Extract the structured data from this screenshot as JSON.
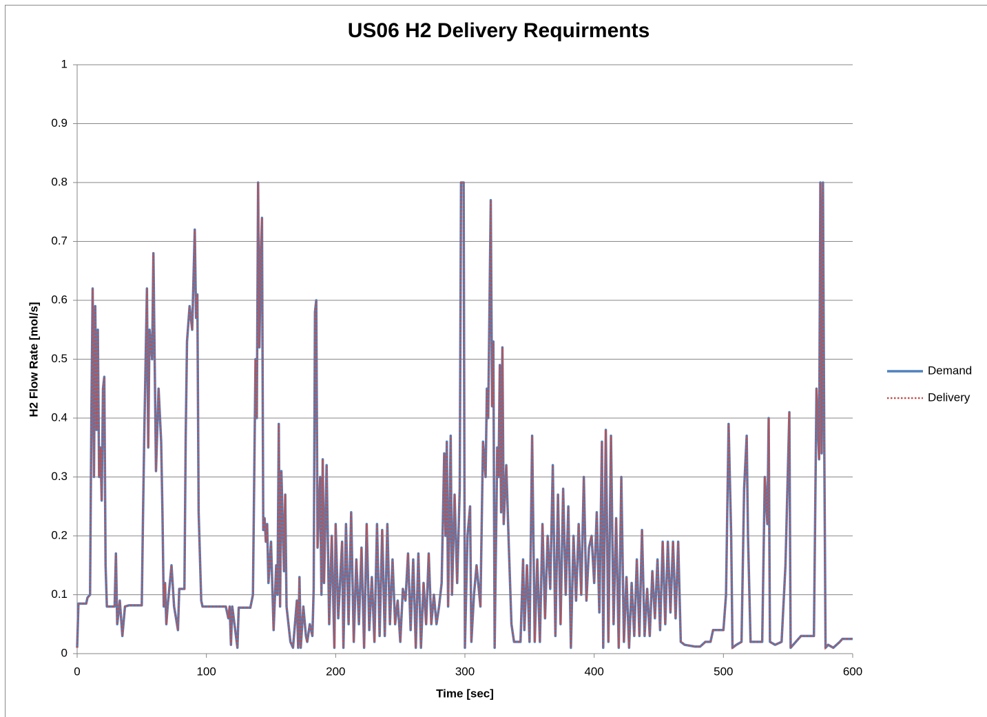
{
  "chart_data": {
    "type": "line",
    "title": "US06 H2 Delivery Requirments",
    "xlabel": "Time [sec]",
    "ylabel": "H2 Flow Rate [mol/s]",
    "xlim": [
      0,
      600
    ],
    "xticks": [
      0,
      100,
      200,
      300,
      400,
      500,
      600
    ],
    "ylim": [
      0,
      1
    ],
    "yticks": [
      0,
      0.1,
      0.2,
      0.3,
      0.4,
      0.5,
      0.6,
      0.7,
      0.8,
      0.9,
      1
    ],
    "grid": true,
    "legend": "right",
    "x": [
      0,
      1,
      7,
      8,
      10,
      11,
      12,
      13,
      14,
      15,
      16,
      17,
      18,
      19,
      20,
      21,
      22,
      23,
      29,
      30,
      31,
      33,
      35,
      37,
      40,
      50,
      51,
      52,
      54,
      55,
      56,
      58,
      59,
      61,
      63,
      65,
      66,
      67,
      68,
      69,
      70,
      73,
      75,
      78,
      79,
      83,
      84,
      85,
      87,
      89,
      91,
      92,
      93,
      94,
      96,
      97,
      115,
      117,
      118,
      119,
      120,
      124,
      125,
      134,
      136,
      138,
      139,
      140,
      141,
      142,
      143,
      144,
      145,
      146,
      147,
      148,
      150,
      152,
      154,
      155,
      156,
      157,
      158,
      160,
      161,
      162,
      165,
      167,
      170,
      171,
      172,
      173,
      175,
      177,
      178,
      180,
      182,
      183,
      184,
      185,
      186,
      188,
      189,
      190,
      191,
      193,
      195,
      197,
      199,
      200,
      202,
      205,
      206,
      208,
      210,
      212,
      214,
      216,
      218,
      220,
      222,
      224,
      226,
      228,
      230,
      232,
      234,
      236,
      238,
      240,
      242,
      244,
      246,
      248,
      250,
      252,
      254,
      256,
      258,
      260,
      262,
      264,
      266,
      268,
      270,
      272,
      274,
      276,
      278,
      280,
      282,
      284,
      285,
      286,
      287,
      289,
      290,
      292,
      294,
      296,
      297,
      299,
      300,
      302,
      304,
      305,
      307,
      309,
      312,
      314,
      316,
      317,
      318,
      320,
      321,
      322,
      323,
      325,
      326,
      327,
      328,
      329,
      330,
      332,
      334,
      336,
      338,
      343,
      345,
      346,
      348,
      350,
      352,
      354,
      356,
      358,
      360,
      362,
      364,
      366,
      368,
      370,
      372,
      374,
      376,
      378,
      380,
      382,
      384,
      386,
      388,
      390,
      392,
      394,
      396,
      398,
      400,
      402,
      404,
      406,
      407,
      409,
      411,
      413,
      415,
      417,
      419,
      421,
      423,
      425,
      427,
      429,
      431,
      433,
      435,
      437,
      439,
      441,
      443,
      445,
      447,
      449,
      451,
      453,
      455,
      457,
      459,
      461,
      463,
      465,
      467,
      470,
      478,
      482,
      486,
      490,
      492,
      500,
      502,
      504,
      506,
      507,
      510,
      514,
      516,
      518,
      519,
      521,
      530,
      532,
      534,
      535,
      536,
      540,
      545,
      548,
      551,
      552,
      556,
      560,
      570,
      572,
      574,
      575,
      576,
      577,
      578,
      579,
      581,
      585,
      590,
      592,
      600
    ],
    "series": [
      {
        "name": "Demand",
        "color": "#4f81bd",
        "style": "solid",
        "values": [
          0.01,
          0.085,
          0.085,
          0.095,
          0.1,
          0.4,
          0.62,
          0.3,
          0.59,
          0.38,
          0.55,
          0.3,
          0.35,
          0.26,
          0.45,
          0.47,
          0.15,
          0.08,
          0.08,
          0.17,
          0.05,
          0.09,
          0.03,
          0.08,
          0.082,
          0.082,
          0.24,
          0.38,
          0.62,
          0.35,
          0.55,
          0.5,
          0.68,
          0.31,
          0.45,
          0.36,
          0.24,
          0.08,
          0.12,
          0.05,
          0.08,
          0.15,
          0.08,
          0.04,
          0.11,
          0.11,
          0.37,
          0.53,
          0.59,
          0.55,
          0.72,
          0.57,
          0.61,
          0.24,
          0.09,
          0.08,
          0.08,
          0.06,
          0.08,
          0.015,
          0.08,
          0.01,
          0.078,
          0.078,
          0.1,
          0.5,
          0.4,
          0.8,
          0.52,
          0.67,
          0.74,
          0.21,
          0.23,
          0.19,
          0.22,
          0.12,
          0.19,
          0.04,
          0.15,
          0.1,
          0.39,
          0.08,
          0.31,
          0.14,
          0.27,
          0.08,
          0.02,
          0.01,
          0.09,
          0.01,
          0.13,
          0.01,
          0.08,
          0.03,
          0.02,
          0.05,
          0.03,
          0.11,
          0.58,
          0.6,
          0.18,
          0.3,
          0.1,
          0.33,
          0.12,
          0.32,
          0.05,
          0.2,
          0.01,
          0.22,
          0.06,
          0.19,
          0.01,
          0.22,
          0.05,
          0.24,
          0.02,
          0.16,
          0.05,
          0.18,
          0.01,
          0.22,
          0.04,
          0.13,
          0.02,
          0.22,
          0.03,
          0.21,
          0.03,
          0.22,
          0.05,
          0.16,
          0.05,
          0.09,
          0.02,
          0.11,
          0.09,
          0.17,
          0.04,
          0.16,
          0.01,
          0.17,
          0.01,
          0.12,
          0.05,
          0.17,
          0.05,
          0.1,
          0.05,
          0.08,
          0.12,
          0.34,
          0.2,
          0.36,
          0.08,
          0.37,
          0.1,
          0.27,
          0.12,
          0.28,
          0.8,
          0.8,
          0.01,
          0.2,
          0.25,
          0.02,
          0.1,
          0.15,
          0.08,
          0.36,
          0.3,
          0.45,
          0.4,
          0.77,
          0.42,
          0.53,
          0.01,
          0.35,
          0.3,
          0.49,
          0.24,
          0.52,
          0.22,
          0.32,
          0.18,
          0.05,
          0.02,
          0.02,
          0.16,
          0.04,
          0.15,
          0.02,
          0.37,
          0.02,
          0.16,
          0.02,
          0.22,
          0.06,
          0.2,
          0.11,
          0.32,
          0.03,
          0.27,
          0.05,
          0.28,
          0.1,
          0.25,
          0.01,
          0.2,
          0.09,
          0.22,
          0.1,
          0.3,
          0.09,
          0.18,
          0.2,
          0.12,
          0.24,
          0.07,
          0.36,
          0.01,
          0.38,
          0.02,
          0.37,
          0.05,
          0.23,
          0.01,
          0.3,
          0.02,
          0.13,
          0.01,
          0.12,
          0.03,
          0.16,
          0.03,
          0.21,
          0.03,
          0.11,
          0.03,
          0.14,
          0.06,
          0.16,
          0.04,
          0.19,
          0.05,
          0.19,
          0.07,
          0.19,
          0.06,
          0.19,
          0.02,
          0.015,
          0.012,
          0.012,
          0.02,
          0.02,
          0.04,
          0.04,
          0.1,
          0.39,
          0.2,
          0.01,
          0.015,
          0.02,
          0.28,
          0.37,
          0.2,
          0.02,
          0.02,
          0.3,
          0.22,
          0.4,
          0.02,
          0.015,
          0.02,
          0.15,
          0.41,
          0.01,
          0.02,
          0.03,
          0.03,
          0.45,
          0.33,
          0.8,
          0.34,
          0.8,
          0.36,
          0.01,
          0.015,
          0.01,
          0.02,
          0.025,
          0.025
        ]
      },
      {
        "name": "Delivery",
        "color": "#c0504d",
        "style": "dotted",
        "values": [
          0.01,
          0.085,
          0.085,
          0.095,
          0.1,
          0.4,
          0.62,
          0.3,
          0.59,
          0.38,
          0.55,
          0.3,
          0.35,
          0.26,
          0.45,
          0.47,
          0.15,
          0.08,
          0.08,
          0.17,
          0.05,
          0.09,
          0.03,
          0.08,
          0.082,
          0.082,
          0.24,
          0.38,
          0.62,
          0.35,
          0.55,
          0.5,
          0.68,
          0.31,
          0.45,
          0.36,
          0.24,
          0.08,
          0.12,
          0.05,
          0.08,
          0.15,
          0.08,
          0.04,
          0.11,
          0.11,
          0.37,
          0.53,
          0.59,
          0.55,
          0.72,
          0.57,
          0.61,
          0.24,
          0.09,
          0.08,
          0.08,
          0.06,
          0.08,
          0.015,
          0.08,
          0.01,
          0.078,
          0.078,
          0.1,
          0.5,
          0.4,
          0.8,
          0.52,
          0.67,
          0.74,
          0.21,
          0.23,
          0.19,
          0.22,
          0.12,
          0.19,
          0.04,
          0.15,
          0.1,
          0.39,
          0.08,
          0.31,
          0.14,
          0.27,
          0.08,
          0.02,
          0.01,
          0.09,
          0.01,
          0.13,
          0.01,
          0.08,
          0.03,
          0.02,
          0.05,
          0.03,
          0.11,
          0.58,
          0.6,
          0.18,
          0.3,
          0.1,
          0.33,
          0.12,
          0.32,
          0.05,
          0.2,
          0.01,
          0.22,
          0.06,
          0.19,
          0.01,
          0.22,
          0.05,
          0.24,
          0.02,
          0.16,
          0.05,
          0.18,
          0.01,
          0.22,
          0.04,
          0.13,
          0.02,
          0.22,
          0.03,
          0.21,
          0.03,
          0.22,
          0.05,
          0.16,
          0.05,
          0.09,
          0.02,
          0.11,
          0.09,
          0.17,
          0.04,
          0.16,
          0.01,
          0.17,
          0.01,
          0.12,
          0.05,
          0.17,
          0.05,
          0.1,
          0.05,
          0.08,
          0.12,
          0.34,
          0.2,
          0.36,
          0.08,
          0.37,
          0.1,
          0.27,
          0.12,
          0.28,
          0.8,
          0.8,
          0.01,
          0.2,
          0.25,
          0.02,
          0.1,
          0.15,
          0.08,
          0.36,
          0.3,
          0.45,
          0.4,
          0.77,
          0.42,
          0.53,
          0.01,
          0.35,
          0.3,
          0.49,
          0.24,
          0.52,
          0.22,
          0.32,
          0.18,
          0.05,
          0.02,
          0.02,
          0.16,
          0.04,
          0.15,
          0.02,
          0.37,
          0.02,
          0.16,
          0.02,
          0.22,
          0.06,
          0.2,
          0.11,
          0.32,
          0.03,
          0.27,
          0.05,
          0.28,
          0.1,
          0.25,
          0.01,
          0.2,
          0.09,
          0.22,
          0.1,
          0.3,
          0.09,
          0.18,
          0.2,
          0.12,
          0.24,
          0.07,
          0.36,
          0.01,
          0.38,
          0.02,
          0.37,
          0.05,
          0.23,
          0.01,
          0.3,
          0.02,
          0.13,
          0.01,
          0.12,
          0.03,
          0.16,
          0.03,
          0.21,
          0.03,
          0.11,
          0.03,
          0.14,
          0.06,
          0.16,
          0.04,
          0.19,
          0.05,
          0.19,
          0.07,
          0.19,
          0.06,
          0.19,
          0.02,
          0.015,
          0.012,
          0.012,
          0.02,
          0.02,
          0.04,
          0.04,
          0.1,
          0.39,
          0.2,
          0.01,
          0.015,
          0.02,
          0.28,
          0.37,
          0.2,
          0.02,
          0.02,
          0.3,
          0.22,
          0.4,
          0.02,
          0.015,
          0.02,
          0.15,
          0.41,
          0.01,
          0.02,
          0.03,
          0.03,
          0.45,
          0.33,
          0.8,
          0.34,
          0.8,
          0.36,
          0.01,
          0.015,
          0.01,
          0.02,
          0.025,
          0.025
        ]
      }
    ]
  }
}
